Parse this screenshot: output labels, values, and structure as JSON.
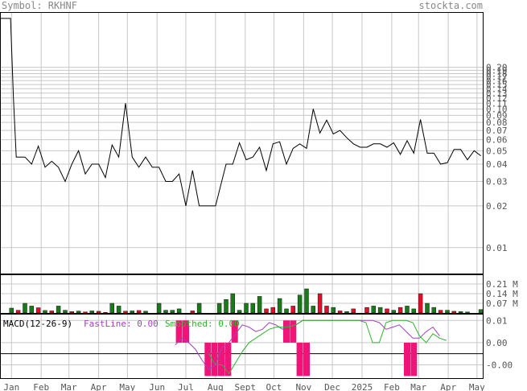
{
  "header": {
    "symbol_label": "Symbol: RKHNF",
    "site": "stockta.com"
  },
  "colors": {
    "up": "#1a7a1a",
    "down": "#e0102a",
    "grid": "#c8c8c8",
    "price": "#000000",
    "macd_fast": "#a040c0",
    "macd_smoothed": "#30b030",
    "macd_hist": "#f01478",
    "text": "#555555"
  },
  "chart_data": [
    {
      "type": "line",
      "title": "",
      "scale": "log",
      "y_ticks": [
        "0.20",
        "0.19",
        "0.18",
        "0.17",
        "0.16",
        "0.15",
        "0.14",
        "0.13",
        "0.12",
        "0.11",
        "0.10",
        "0.09",
        "0.08",
        "0.07",
        "0.06",
        "0.05",
        "0.04",
        "0.03",
        "0.02",
        "0.01"
      ],
      "x_ticks": [
        "Jan",
        "Feb",
        "Mar",
        "Apr",
        "May",
        "Jun",
        "Jul",
        "Aug",
        "Sept",
        "Oct",
        "Nov",
        "Dec",
        "2025",
        "Feb",
        "Mar",
        "Apr",
        "May"
      ],
      "x_tick_dates": [
        "2024-01-01",
        "2024-02-01",
        "2024-03-01",
        "2024-04-01",
        "2024-05-01",
        "2024-06-01",
        "2024-07-01",
        "2024-08-01",
        "2024-09-01",
        "2024-10-01",
        "2024-11-01",
        "2024-12-01",
        "2025-01-01",
        "2025-02-01",
        "2025-03-01",
        "2025-04-01",
        "2025-05-01"
      ],
      "x_range": [
        "2023-12-20",
        "2025-05-07"
      ],
      "ylim": [
        0.0065,
        0.5
      ],
      "series": [
        {
          "values": [
            [
              "2023-12-20",
              0.45
            ],
            [
              "2023-12-31",
              0.45
            ],
            [
              "2024-01-03",
              0.12
            ],
            [
              "2024-01-06",
              0.045
            ],
            [
              "2024-01-15",
              0.045
            ],
            [
              "2024-01-22",
              0.04
            ],
            [
              "2024-01-29",
              0.054
            ],
            [
              "2024-02-05",
              0.038
            ],
            [
              "2024-02-12",
              0.042
            ],
            [
              "2024-02-19",
              0.038
            ],
            [
              "2024-02-26",
              0.03
            ],
            [
              "2024-03-04",
              0.04
            ],
            [
              "2024-03-11",
              0.05
            ],
            [
              "2024-03-18",
              0.034
            ],
            [
              "2024-03-25",
              0.04
            ],
            [
              "2024-04-01",
              0.04
            ],
            [
              "2024-04-08",
              0.032
            ],
            [
              "2024-04-15",
              0.055
            ],
            [
              "2024-04-22",
              0.045
            ],
            [
              "2024-04-29",
              0.11
            ],
            [
              "2024-05-06",
              0.045
            ],
            [
              "2024-05-13",
              0.038
            ],
            [
              "2024-05-20",
              0.045
            ],
            [
              "2024-05-27",
              0.038
            ],
            [
              "2024-06-03",
              0.038
            ],
            [
              "2024-06-10",
              0.03
            ],
            [
              "2024-06-17",
              0.03
            ],
            [
              "2024-06-24",
              0.034
            ],
            [
              "2024-07-01",
              0.02
            ],
            [
              "2024-07-08",
              0.036
            ],
            [
              "2024-07-15",
              0.02
            ],
            [
              "2024-07-22",
              0.02
            ],
            [
              "2024-08-01",
              0.02
            ],
            [
              "2024-08-12",
              0.04
            ],
            [
              "2024-08-19",
              0.04
            ],
            [
              "2024-08-26",
              0.057
            ],
            [
              "2024-09-02",
              0.043
            ],
            [
              "2024-09-09",
              0.045
            ],
            [
              "2024-09-16",
              0.053
            ],
            [
              "2024-09-23",
              0.036
            ],
            [
              "2024-09-30",
              0.056
            ],
            [
              "2024-10-07",
              0.058
            ],
            [
              "2024-10-14",
              0.04
            ],
            [
              "2024-10-21",
              0.052
            ],
            [
              "2024-10-28",
              0.056
            ],
            [
              "2024-11-04",
              0.052
            ],
            [
              "2024-11-11",
              0.1
            ],
            [
              "2024-11-18",
              0.067
            ],
            [
              "2024-11-25",
              0.083
            ],
            [
              "2024-12-02",
              0.066
            ],
            [
              "2024-12-09",
              0.07
            ],
            [
              "2024-12-16",
              0.062
            ],
            [
              "2024-12-23",
              0.056
            ],
            [
              "2024-12-30",
              0.053
            ],
            [
              "2025-01-06",
              0.053
            ],
            [
              "2025-01-13",
              0.056
            ],
            [
              "2025-01-20",
              0.056
            ],
            [
              "2025-01-27",
              0.053
            ],
            [
              "2025-02-03",
              0.057
            ],
            [
              "2025-02-10",
              0.047
            ],
            [
              "2025-02-17",
              0.059
            ],
            [
              "2025-02-24",
              0.048
            ],
            [
              "2025-03-03",
              0.084
            ],
            [
              "2025-03-10",
              0.048
            ],
            [
              "2025-03-17",
              0.048
            ],
            [
              "2025-03-24",
              0.04
            ],
            [
              "2025-03-31",
              0.041
            ],
            [
              "2025-04-07",
              0.051
            ],
            [
              "2025-04-14",
              0.051
            ],
            [
              "2025-04-21",
              0.043
            ],
            [
              "2025-04-28",
              0.05
            ],
            [
              "2025-05-05",
              0.046
            ]
          ]
        }
      ]
    },
    {
      "type": "bar",
      "title": "",
      "unit": "M",
      "y_ticks": [
        {
          "label": "0.21 M",
          "value": 0.21
        },
        {
          "label": "0.14 M",
          "value": 0.14
        },
        {
          "label": "0.07 M",
          "value": 0.07
        }
      ],
      "ylim": [
        0,
        0.28
      ],
      "values": [
        [
          "2024-01-01",
          0.035,
          "up"
        ],
        [
          "2024-01-08",
          0.02,
          "down"
        ],
        [
          "2024-01-15",
          0.07,
          "up"
        ],
        [
          "2024-01-22",
          0.05,
          "up"
        ],
        [
          "2024-01-29",
          0.038,
          "down"
        ],
        [
          "2024-02-05",
          0.018,
          "up"
        ],
        [
          "2024-02-12",
          0.015,
          "down"
        ],
        [
          "2024-02-19",
          0.05,
          "up"
        ],
        [
          "2024-02-26",
          0.02,
          "up"
        ],
        [
          "2024-03-04",
          0.01,
          "down"
        ],
        [
          "2024-03-11",
          0.014,
          "up"
        ],
        [
          "2024-03-18",
          0.007,
          "down"
        ],
        [
          "2024-03-25",
          0.015,
          "up"
        ],
        [
          "2024-04-01",
          0.012,
          "down"
        ],
        [
          "2024-04-08",
          0.004,
          "down"
        ],
        [
          "2024-04-15",
          0.07,
          "up"
        ],
        [
          "2024-04-22",
          0.05,
          "up"
        ],
        [
          "2024-04-29",
          0.013,
          "down"
        ],
        [
          "2024-05-06",
          0.015,
          "up"
        ],
        [
          "2024-05-13",
          0.018,
          "down"
        ],
        [
          "2024-05-20",
          0.013,
          "up"
        ],
        [
          "2024-06-03",
          0.07,
          "up"
        ],
        [
          "2024-06-10",
          0.02,
          "up"
        ],
        [
          "2024-06-17",
          0.02,
          "up"
        ],
        [
          "2024-06-24",
          0.03,
          "up"
        ],
        [
          "2024-07-08",
          0.015,
          "down"
        ],
        [
          "2024-07-15",
          0.07,
          "up"
        ],
        [
          "2024-08-05",
          0.07,
          "up"
        ],
        [
          "2024-08-12",
          0.098,
          "up"
        ],
        [
          "2024-08-19",
          0.14,
          "up"
        ],
        [
          "2024-08-26",
          0.02,
          "up"
        ],
        [
          "2024-09-02",
          0.07,
          "up"
        ],
        [
          "2024-09-09",
          0.07,
          "up"
        ],
        [
          "2024-09-16",
          0.12,
          "up"
        ],
        [
          "2024-09-23",
          0.03,
          "down"
        ],
        [
          "2024-09-30",
          0.04,
          "down"
        ],
        [
          "2024-10-07",
          0.105,
          "up"
        ],
        [
          "2024-10-14",
          0.03,
          "up"
        ],
        [
          "2024-10-21",
          0.05,
          "down"
        ],
        [
          "2024-10-28",
          0.13,
          "up"
        ],
        [
          "2024-11-04",
          0.175,
          "up"
        ],
        [
          "2024-11-11",
          0.05,
          "up"
        ],
        [
          "2024-11-18",
          0.14,
          "down"
        ],
        [
          "2024-11-25",
          0.05,
          "down"
        ],
        [
          "2024-12-02",
          0.04,
          "up"
        ],
        [
          "2024-12-09",
          0.015,
          "down"
        ],
        [
          "2024-12-16",
          0.01,
          "up"
        ],
        [
          "2024-12-23",
          0.03,
          "down"
        ],
        [
          "2025-01-06",
          0.04,
          "down"
        ],
        [
          "2025-01-13",
          0.05,
          "up"
        ],
        [
          "2025-01-20",
          0.04,
          "up"
        ],
        [
          "2025-01-27",
          0.03,
          "down"
        ],
        [
          "2025-02-03",
          0.02,
          "up"
        ],
        [
          "2025-02-10",
          0.04,
          "down"
        ],
        [
          "2025-02-17",
          0.05,
          "up"
        ],
        [
          "2025-02-24",
          0.03,
          "up"
        ],
        [
          "2025-03-03",
          0.14,
          "down"
        ],
        [
          "2025-03-10",
          0.07,
          "up"
        ],
        [
          "2025-03-17",
          0.04,
          "up"
        ],
        [
          "2025-03-24",
          0.02,
          "down"
        ],
        [
          "2025-03-31",
          0.02,
          "up"
        ],
        [
          "2025-04-07",
          0.012,
          "down"
        ],
        [
          "2025-04-14",
          0.01,
          "up"
        ],
        [
          "2025-04-21",
          0.007,
          "up"
        ],
        [
          "2025-05-05",
          0.025,
          "up"
        ]
      ]
    },
    {
      "type": "line",
      "title": "MACD(12-26-9)",
      "legend": [
        {
          "name": "FastLine: 0.00",
          "color": "#a040c0"
        },
        {
          "name": "Smoothed: 0.00",
          "color": "#30b030"
        }
      ],
      "y_ticks": [
        "0.01",
        "0.00",
        "-0.00"
      ],
      "y_tick_values": [
        0.01,
        0,
        -0.01
      ],
      "ylim": [
        -0.016,
        0.013
      ],
      "series": [
        {
          "name": "FastLine",
          "values": [
            [
              "2024-06-20",
              -0.001
            ],
            [
              "2024-06-27",
              0.002
            ],
            [
              "2024-07-04",
              0.0
            ],
            [
              "2024-07-11",
              -0.003
            ],
            [
              "2024-07-18",
              -0.008
            ],
            [
              "2024-07-25",
              -0.012
            ],
            [
              "2024-08-01",
              -0.01
            ],
            [
              "2024-08-08",
              -0.002
            ],
            [
              "2024-08-15",
              0.0
            ],
            [
              "2024-08-22",
              0.004
            ],
            [
              "2024-08-29",
              0.008
            ],
            [
              "2024-09-05",
              0.007
            ],
            [
              "2024-09-12",
              0.005
            ],
            [
              "2024-09-19",
              0.006
            ],
            [
              "2024-09-26",
              0.009
            ],
            [
              "2024-10-03",
              0.008
            ],
            [
              "2024-10-10",
              0.006
            ],
            [
              "2024-10-17",
              0.008
            ],
            [
              "2024-10-24",
              0.008
            ],
            [
              "2024-10-31",
              0.01
            ],
            [
              "2024-11-07",
              0.01
            ],
            [
              "2024-11-14",
              0.01
            ],
            [
              "2024-12-01",
              0.01
            ],
            [
              "2024-12-15",
              0.01
            ],
            [
              "2025-01-05",
              0.01
            ],
            [
              "2025-01-12",
              0.01
            ],
            [
              "2025-01-19",
              0.009
            ],
            [
              "2025-01-26",
              0.006
            ],
            [
              "2025-02-02",
              0.007
            ],
            [
              "2025-02-09",
              0.008
            ],
            [
              "2025-02-16",
              0.005
            ],
            [
              "2025-02-23",
              0.002
            ],
            [
              "2025-03-02",
              0.002
            ],
            [
              "2025-03-09",
              0.005
            ],
            [
              "2025-03-16",
              0.007
            ],
            [
              "2025-03-23",
              0.003
            ]
          ]
        },
        {
          "name": "Smoothed",
          "values": [
            [
              "2024-07-25",
              -0.005
            ],
            [
              "2024-08-01",
              -0.01
            ],
            [
              "2024-08-08",
              -0.01
            ],
            [
              "2024-08-15",
              -0.014
            ],
            [
              "2024-08-22",
              -0.009
            ],
            [
              "2024-08-29",
              -0.004
            ],
            [
              "2024-09-05",
              0.0
            ],
            [
              "2024-09-12",
              0.002
            ],
            [
              "2024-09-19",
              0.004
            ],
            [
              "2024-09-26",
              0.006
            ],
            [
              "2024-10-03",
              0.007
            ],
            [
              "2024-10-10",
              0.007
            ],
            [
              "2024-10-17",
              0.007
            ],
            [
              "2024-10-24",
              0.008
            ],
            [
              "2024-10-31",
              0.01
            ],
            [
              "2024-11-07",
              0.01
            ],
            [
              "2024-12-01",
              0.01
            ],
            [
              "2024-12-29",
              0.01
            ],
            [
              "2025-01-05",
              0.009
            ],
            [
              "2025-01-12",
              0.0
            ],
            [
              "2025-01-19",
              0.0
            ],
            [
              "2025-01-26",
              0.009
            ],
            [
              "2025-02-02",
              0.01
            ],
            [
              "2025-02-16",
              0.01
            ],
            [
              "2025-02-23",
              0.009
            ],
            [
              "2025-03-02",
              0.003
            ],
            [
              "2025-03-09",
              0.0
            ],
            [
              "2025-03-16",
              0.004
            ],
            [
              "2025-03-23",
              0.002
            ],
            [
              "2025-03-30",
              0.001
            ]
          ]
        },
        {
          "name": "Histogram",
          "values": [
            [
              "2024-06-24",
              0.01
            ],
            [
              "2024-07-01",
              0.01
            ],
            [
              "2024-07-24",
              -0.015
            ],
            [
              "2024-07-31",
              -0.015
            ],
            [
              "2024-08-07",
              -0.015
            ],
            [
              "2024-08-14",
              -0.015
            ],
            [
              "2024-08-21",
              0.01
            ],
            [
              "2024-10-14",
              0.01
            ],
            [
              "2024-10-21",
              0.01
            ],
            [
              "2024-10-28",
              -0.015
            ],
            [
              "2024-11-04",
              -0.015
            ],
            [
              "2025-02-17",
              -0.015
            ],
            [
              "2025-02-24",
              -0.015
            ]
          ]
        }
      ]
    }
  ]
}
